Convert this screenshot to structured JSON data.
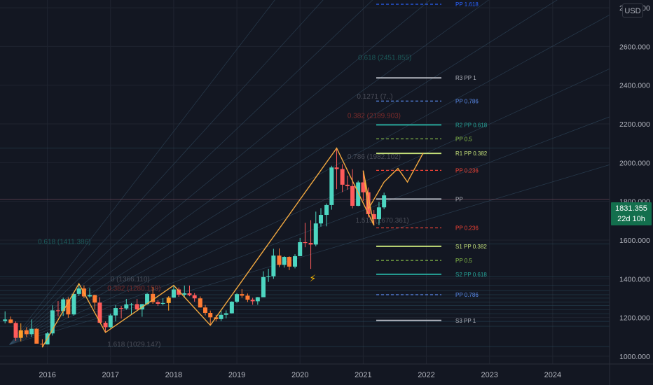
{
  "currency": "USD",
  "last_price": {
    "value": "1831.355",
    "countdown": "22d 10h"
  },
  "colors": {
    "background": "#131722",
    "grid": "#1f2430",
    "up": "#4dd6c1",
    "down": "#ff5b5b",
    "highlight_up": "#ff9f2a",
    "highlight_down": "#ff7c33",
    "zigzag": "#f3a940",
    "axis_text": "#b2b5be",
    "price_badge": "#136f4d"
  },
  "chart_data": {
    "type": "candlestick",
    "symbol_unit": "USD",
    "x_axis": {
      "ticks": [
        "2016",
        "2017",
        "2018",
        "2019",
        "2020",
        "2021",
        "2022",
        "2023",
        "2024"
      ],
      "x_range_years": [
        2015.25,
        2024.9
      ]
    },
    "y_axis": {
      "ticks": [
        1000,
        1200,
        1400,
        1600,
        1800,
        2000,
        2200,
        2400,
        2600,
        2800
      ],
      "tick_labels": [
        "1000.000",
        "1200.000",
        "1400.000",
        "1600.000",
        "1800.000",
        "2000.000",
        "2200.000",
        "2400.000",
        "2600.000",
        "2800.000"
      ],
      "ylim": [
        960,
        2840
      ]
    },
    "candles": [
      {
        "t": 2015.33,
        "o": 1182,
        "h": 1232,
        "l": 1170,
        "c": 1190
      },
      {
        "t": 2015.42,
        "o": 1190,
        "h": 1205,
        "l": 1170,
        "c": 1172
      },
      {
        "t": 2015.5,
        "o": 1172,
        "h": 1180,
        "l": 1080,
        "c": 1095
      },
      {
        "t": 2015.58,
        "o": 1095,
        "h": 1170,
        "l": 1077,
        "c": 1134
      },
      {
        "t": 2015.67,
        "o": 1134,
        "h": 1150,
        "l": 1098,
        "c": 1114
      },
      {
        "t": 2015.75,
        "o": 1114,
        "h": 1190,
        "l": 1100,
        "c": 1142
      },
      {
        "t": 2015.83,
        "o": 1142,
        "h": 1145,
        "l": 1065,
        "c": 1065
      },
      {
        "t": 2015.92,
        "o": 1065,
        "h": 1088,
        "l": 1046,
        "c": 1061
      },
      {
        "t": 2016.0,
        "o": 1061,
        "h": 1126,
        "l": 1061,
        "c": 1118
      },
      {
        "t": 2016.08,
        "o": 1118,
        "h": 1263,
        "l": 1107,
        "c": 1237
      },
      {
        "t": 2016.17,
        "o": 1237,
        "h": 1285,
        "l": 1205,
        "c": 1233
      },
      {
        "t": 2016.25,
        "o": 1233,
        "h": 1303,
        "l": 1208,
        "c": 1294
      },
      {
        "t": 2016.33,
        "o": 1294,
        "h": 1305,
        "l": 1199,
        "c": 1216
      },
      {
        "t": 2016.42,
        "o": 1216,
        "h": 1322,
        "l": 1210,
        "c": 1322
      },
      {
        "t": 2016.5,
        "o": 1322,
        "h": 1375,
        "l": 1311,
        "c": 1350
      },
      {
        "t": 2016.58,
        "o": 1350,
        "h": 1366,
        "l": 1301,
        "c": 1309
      },
      {
        "t": 2016.67,
        "o": 1309,
        "h": 1352,
        "l": 1303,
        "c": 1316
      },
      {
        "t": 2016.75,
        "o": 1316,
        "h": 1318,
        "l": 1241,
        "c": 1277
      },
      {
        "t": 2016.83,
        "o": 1277,
        "h": 1305,
        "l": 1171,
        "c": 1173
      },
      {
        "t": 2016.92,
        "o": 1173,
        "h": 1180,
        "l": 1123,
        "c": 1150
      },
      {
        "t": 2017.0,
        "o": 1150,
        "h": 1220,
        "l": 1146,
        "c": 1211
      },
      {
        "t": 2017.08,
        "o": 1211,
        "h": 1264,
        "l": 1180,
        "c": 1249
      },
      {
        "t": 2017.17,
        "o": 1249,
        "h": 1260,
        "l": 1195,
        "c": 1247
      },
      {
        "t": 2017.25,
        "o": 1247,
        "h": 1296,
        "l": 1240,
        "c": 1268
      },
      {
        "t": 2017.33,
        "o": 1268,
        "h": 1275,
        "l": 1214,
        "c": 1269
      },
      {
        "t": 2017.42,
        "o": 1269,
        "h": 1296,
        "l": 1236,
        "c": 1242
      },
      {
        "t": 2017.5,
        "o": 1242,
        "h": 1270,
        "l": 1204,
        "c": 1269
      },
      {
        "t": 2017.58,
        "o": 1269,
        "h": 1326,
        "l": 1266,
        "c": 1322
      },
      {
        "t": 2017.67,
        "o": 1322,
        "h": 1358,
        "l": 1271,
        "c": 1280
      },
      {
        "t": 2017.75,
        "o": 1280,
        "h": 1290,
        "l": 1260,
        "c": 1271
      },
      {
        "t": 2017.83,
        "o": 1271,
        "h": 1299,
        "l": 1263,
        "c": 1275
      },
      {
        "t": 2017.92,
        "o": 1275,
        "h": 1310,
        "l": 1236,
        "c": 1303
      },
      {
        "t": 2018.0,
        "o": 1303,
        "h": 1366,
        "l": 1302,
        "c": 1345
      },
      {
        "t": 2018.08,
        "o": 1345,
        "h": 1355,
        "l": 1307,
        "c": 1318
      },
      {
        "t": 2018.17,
        "o": 1318,
        "h": 1365,
        "l": 1303,
        "c": 1325
      },
      {
        "t": 2018.25,
        "o": 1325,
        "h": 1365,
        "l": 1310,
        "c": 1315
      },
      {
        "t": 2018.33,
        "o": 1315,
        "h": 1326,
        "l": 1282,
        "c": 1299
      },
      {
        "t": 2018.42,
        "o": 1299,
        "h": 1309,
        "l": 1251,
        "c": 1252
      },
      {
        "t": 2018.5,
        "o": 1252,
        "h": 1265,
        "l": 1211,
        "c": 1224
      },
      {
        "t": 2018.58,
        "o": 1224,
        "h": 1236,
        "l": 1160,
        "c": 1201
      },
      {
        "t": 2018.67,
        "o": 1201,
        "h": 1214,
        "l": 1180,
        "c": 1192
      },
      {
        "t": 2018.75,
        "o": 1192,
        "h": 1243,
        "l": 1182,
        "c": 1214
      },
      {
        "t": 2018.83,
        "o": 1214,
        "h": 1237,
        "l": 1196,
        "c": 1222
      },
      {
        "t": 2018.92,
        "o": 1222,
        "h": 1284,
        "l": 1221,
        "c": 1282
      },
      {
        "t": 2019.0,
        "o": 1282,
        "h": 1326,
        "l": 1275,
        "c": 1321
      },
      {
        "t": 2019.08,
        "o": 1321,
        "h": 1347,
        "l": 1302,
        "c": 1313
      },
      {
        "t": 2019.17,
        "o": 1313,
        "h": 1324,
        "l": 1280,
        "c": 1292
      },
      {
        "t": 2019.25,
        "o": 1292,
        "h": 1302,
        "l": 1266,
        "c": 1284
      },
      {
        "t": 2019.33,
        "o": 1284,
        "h": 1306,
        "l": 1266,
        "c": 1305
      },
      {
        "t": 2019.42,
        "o": 1305,
        "h": 1439,
        "l": 1318,
        "c": 1409
      },
      {
        "t": 2019.5,
        "o": 1409,
        "h": 1452,
        "l": 1384,
        "c": 1413
      },
      {
        "t": 2019.58,
        "o": 1413,
        "h": 1555,
        "l": 1400,
        "c": 1520
      },
      {
        "t": 2019.67,
        "o": 1520,
        "h": 1557,
        "l": 1460,
        "c": 1472
      },
      {
        "t": 2019.75,
        "o": 1472,
        "h": 1517,
        "l": 1458,
        "c": 1513
      },
      {
        "t": 2019.83,
        "o": 1513,
        "h": 1516,
        "l": 1445,
        "c": 1463
      },
      {
        "t": 2019.92,
        "o": 1463,
        "h": 1527,
        "l": 1454,
        "c": 1517
      },
      {
        "t": 2020.0,
        "o": 1517,
        "h": 1611,
        "l": 1517,
        "c": 1589
      },
      {
        "t": 2020.08,
        "o": 1589,
        "h": 1689,
        "l": 1563,
        "c": 1585
      },
      {
        "t": 2020.17,
        "o": 1585,
        "h": 1703,
        "l": 1451,
        "c": 1577
      },
      {
        "t": 2020.25,
        "o": 1577,
        "h": 1747,
        "l": 1568,
        "c": 1686
      },
      {
        "t": 2020.33,
        "o": 1686,
        "h": 1765,
        "l": 1670,
        "c": 1730
      },
      {
        "t": 2020.42,
        "o": 1730,
        "h": 1789,
        "l": 1671,
        "c": 1781
      },
      {
        "t": 2020.5,
        "o": 1781,
        "h": 1984,
        "l": 1757,
        "c": 1975
      },
      {
        "t": 2020.58,
        "o": 1975,
        "h": 2075,
        "l": 1863,
        "c": 1967
      },
      {
        "t": 2020.67,
        "o": 1967,
        "h": 1992,
        "l": 1848,
        "c": 1886
      },
      {
        "t": 2020.75,
        "o": 1886,
        "h": 1933,
        "l": 1860,
        "c": 1879
      },
      {
        "t": 2020.83,
        "o": 1879,
        "h": 1966,
        "l": 1764,
        "c": 1777
      },
      {
        "t": 2020.92,
        "o": 1777,
        "h": 1907,
        "l": 1775,
        "c": 1898
      },
      {
        "t": 2021.0,
        "o": 1898,
        "h": 1959,
        "l": 1802,
        "c": 1847
      },
      {
        "t": 2021.08,
        "o": 1847,
        "h": 1872,
        "l": 1717,
        "c": 1734
      },
      {
        "t": 2021.17,
        "o": 1734,
        "h": 1755,
        "l": 1676,
        "c": 1708
      },
      {
        "t": 2021.25,
        "o": 1708,
        "h": 1797,
        "l": 1678,
        "c": 1769
      },
      {
        "t": 2021.33,
        "o": 1769,
        "h": 1845,
        "l": 1760,
        "c": 1831
      }
    ],
    "highlighted_candles_t": [
      2015.42,
      2015.58,
      2015.67,
      2015.83,
      2015.92,
      2016.33,
      2016.58,
      2016.75,
      2017.67,
      2017.92,
      2018.42,
      2018.5,
      2018.58,
      2018.67,
      2019.08,
      2019.17,
      2019.67,
      2019.83
    ],
    "zigzag": [
      {
        "t": 2015.92,
        "p": 1046
      },
      {
        "t": 2016.5,
        "p": 1375
      },
      {
        "t": 2016.92,
        "p": 1123
      },
      {
        "t": 2018.0,
        "p": 1366
      },
      {
        "t": 2018.58,
        "p": 1160
      },
      {
        "t": 2020.58,
        "p": 2075
      },
      {
        "t": 2021.17,
        "p": 1676
      },
      {
        "t": 2021.0,
        "p": 1959
      },
      {
        "t": 2021.08,
        "p": 1760
      },
      {
        "t": 2021.33,
        "p": 1900
      },
      {
        "t": 2021.55,
        "p": 1970
      },
      {
        "t": 2021.7,
        "p": 1900
      },
      {
        "t": 2021.95,
        "p": 2050
      }
    ],
    "pivots": [
      {
        "label": "PP 1.618",
        "price": 2818,
        "color": "#2962ff",
        "style": "dashed"
      },
      {
        "label": "R3 PP 1",
        "price": 2438,
        "color": "#b2b5be",
        "style": "solid"
      },
      {
        "label": "PP 0.786",
        "price": 2318,
        "color": "#5b8def",
        "style": "dashed"
      },
      {
        "label": "R2 PP 0.618",
        "price": 2195,
        "color": "#26a69a",
        "style": "solid"
      },
      {
        "label": "PP 0.5",
        "price": 2123,
        "color": "#8bc34a",
        "style": "dashed"
      },
      {
        "label": "R1 PP 0.382",
        "price": 2048,
        "color": "#c5e17a",
        "style": "solid"
      },
      {
        "label": "PP 0.236",
        "price": 1960,
        "color": "#f44336",
        "style": "dashed"
      },
      {
        "label": "PP",
        "price": 1812,
        "color": "#b2b5be",
        "style": "solid"
      },
      {
        "label": "PP 0.236",
        "price": 1663,
        "color": "#f44336",
        "style": "dashed"
      },
      {
        "label": "S1 PP 0.382",
        "price": 1568,
        "color": "#c5e17a",
        "style": "solid"
      },
      {
        "label": "PP 0.5",
        "price": 1495,
        "color": "#8bc34a",
        "style": "dashed"
      },
      {
        "label": "S2 PP 0.618",
        "price": 1423,
        "color": "#26a69a",
        "style": "solid"
      },
      {
        "label": "PP 0.786",
        "price": 1318,
        "color": "#5b8def",
        "style": "dashed"
      },
      {
        "label": "S3 PP 1",
        "price": 1185,
        "color": "#b2b5be",
        "style": "solid"
      }
    ],
    "faded_labels": [
      {
        "text": "0.618 (1411.386)",
        "t": 2015.85,
        "p": 1580,
        "color": "#26a69a"
      },
      {
        "text": "0 (1366.110)",
        "t": 2017.0,
        "p": 1387,
        "color": "#8c8f99"
      },
      {
        "text": "0.382 (1280.159)",
        "t": 2016.95,
        "p": 1340,
        "color": "#f44336"
      },
      {
        "text": "1.618 (1029.147)",
        "t": 2016.95,
        "p": 1050,
        "color": "#8c8f99"
      },
      {
        "text": "0.618 (2451.855)",
        "t": 2020.92,
        "p": 2530,
        "color": "#26a69a"
      },
      {
        "text": "0.1271 (7..)",
        "t": 2020.9,
        "p": 2330,
        "color": "#8c8f99"
      },
      {
        "text": "0.382 (2189.903)",
        "t": 2020.75,
        "p": 2230,
        "color": "#f44336"
      },
      {
        "text": "0.786 (1982.102)",
        "t": 2020.75,
        "p": 2020,
        "color": "#8c8f99"
      },
      {
        "text": "1.515 (1670.361)",
        "t": 2020.88,
        "p": 1690,
        "color": "#8c8f99"
      }
    ],
    "marker": {
      "symbol": "⚡",
      "t": 2020.2,
      "p": 1385
    }
  }
}
